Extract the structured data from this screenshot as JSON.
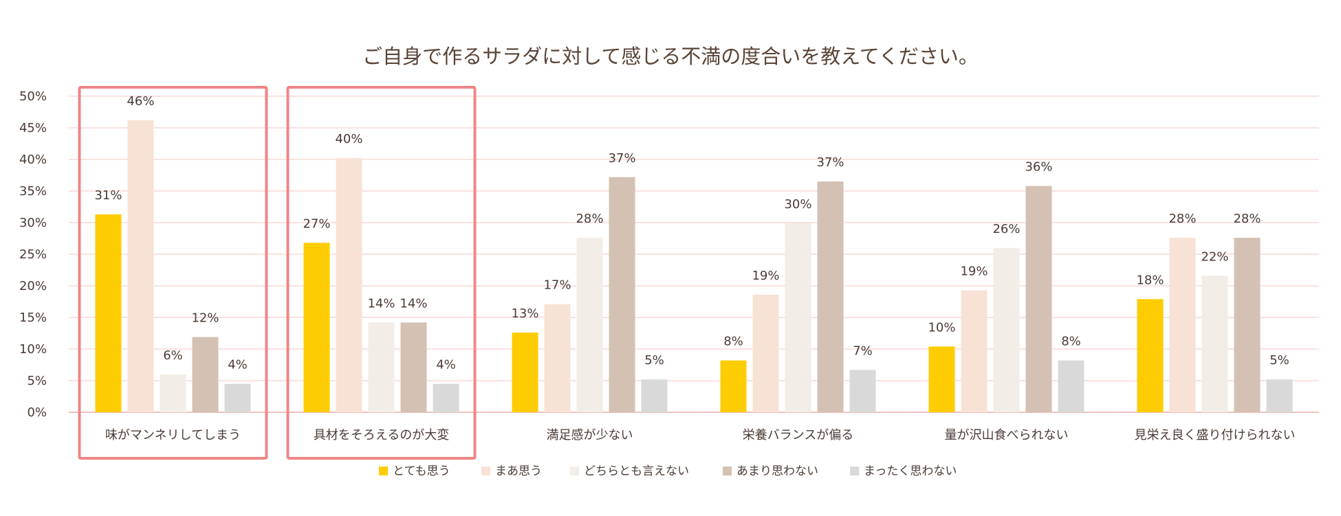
{
  "chart_data": {
    "type": "bar",
    "title": "ご自身で作るサラダに対して感じる不満の度合いを教えてください。",
    "xlabel": "",
    "ylabel": "",
    "ylim": [
      0,
      50
    ],
    "yticks": [
      0,
      5,
      10,
      15,
      20,
      25,
      30,
      35,
      40,
      45,
      50
    ],
    "tick_suffix": "%",
    "grid": true,
    "legend_position": "bottom",
    "categories": [
      "味がマンネリしてしまう",
      "具材をそろえるのが大変",
      "満足感が少ない",
      "栄養バランスが偏る",
      "量が沢山食べられない",
      "見栄え良く盛り付けられない"
    ],
    "series": [
      {
        "name": "とても思う",
        "color": "#fecc02",
        "values": [
          31.3,
          26.8,
          12.6,
          8.2,
          10.4,
          17.9
        ],
        "labels": [
          "31%",
          "27%",
          "13%",
          "8%",
          "10%",
          "18%"
        ]
      },
      {
        "name": "まあ思う",
        "color": "#f8e2d5",
        "values": [
          46.2,
          40.2,
          17.1,
          18.6,
          19.3,
          27.6
        ],
        "labels": [
          "46%",
          "40%",
          "17%",
          "19%",
          "19%",
          "28%"
        ]
      },
      {
        "name": "どちらとも言えない",
        "color": "#f2ede6",
        "values": [
          6.0,
          14.2,
          27.6,
          29.9,
          26.0,
          21.6
        ],
        "labels": [
          "6%",
          "14%",
          "28%",
          "30%",
          "26%",
          "22%"
        ]
      },
      {
        "name": "あまり思わない",
        "color": "#d4c1b3",
        "values": [
          11.9,
          14.2,
          37.2,
          36.5,
          35.8,
          27.6
        ],
        "labels": [
          "12%",
          "14%",
          "37%",
          "37%",
          "36%",
          "28%"
        ]
      },
      {
        "name": "まったく思わない",
        "color": "#d9d9d9",
        "values": [
          4.5,
          4.5,
          5.2,
          6.7,
          8.2,
          5.2
        ],
        "labels": [
          "4%",
          "4%",
          "5%",
          "7%",
          "8%",
          "5%"
        ]
      }
    ],
    "highlighted_categories": [
      0,
      1
    ],
    "highlight_color": "#ef8587",
    "grid_color": "#f5d9d6",
    "axis_color": "#f0c0bc"
  }
}
